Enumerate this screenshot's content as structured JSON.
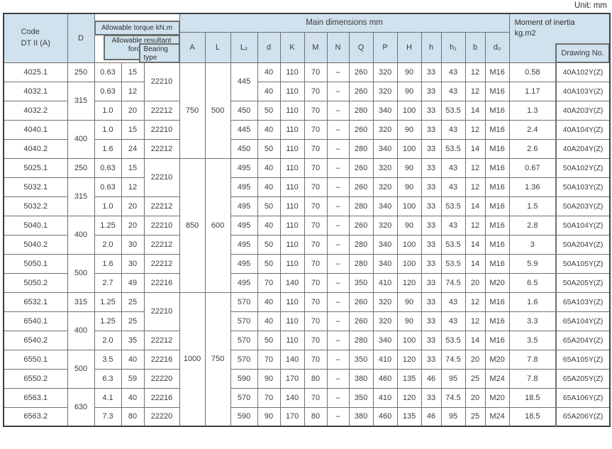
{
  "unit_label": "Unit: mm",
  "colors": {
    "header_bg": "#cfe2ed",
    "grid_line": "#707070",
    "nest_border": "#6e6e6e",
    "outer_border": "#3f3f3f",
    "text": "#3c3c3c"
  },
  "table": {
    "header": {
      "code": "Code\nDT II (A)",
      "d": "D",
      "torque": "Allowable torque kN.m",
      "resultant": "Allowable resultant\nforce kN",
      "bearing": "Bearing\ntype",
      "main_dims": "Main dimensions mm",
      "moment": "Moment of inertia\nkg.m2",
      "drawing": "Drawing No.",
      "dim_letters": [
        "A",
        "L",
        "L₂",
        "d",
        "K",
        "M",
        "N",
        "Q",
        "P",
        "H",
        "h",
        "h₁",
        "b",
        "d₀"
      ]
    },
    "rows": [
      [
        {
          "v": "4025.1"
        },
        {
          "v": "250"
        },
        {
          "v": "0.63"
        },
        {
          "v": "15"
        },
        {
          "v": "22210",
          "rs": 2
        },
        {
          "v": "750",
          "rs": 5
        },
        {
          "v": "500",
          "rs": 5
        },
        {
          "v": "445",
          "rs": 2
        },
        {
          "v": "40"
        },
        {
          "v": "110"
        },
        {
          "v": "70"
        },
        {
          "v": "–"
        },
        {
          "v": "260"
        },
        {
          "v": "320"
        },
        {
          "v": "90"
        },
        {
          "v": "33"
        },
        {
          "v": "43"
        },
        {
          "v": "12"
        },
        {
          "v": "M16"
        },
        {
          "v": "0.58"
        },
        {
          "v": "40A102Y(Z)"
        }
      ],
      [
        {
          "v": "4032.1"
        },
        {
          "v": "315",
          "rs": 2
        },
        {
          "v": "0.63"
        },
        {
          "v": "12"
        },
        {
          "v": "40"
        },
        {
          "v": "110"
        },
        {
          "v": "70"
        },
        {
          "v": "–"
        },
        {
          "v": "260"
        },
        {
          "v": "320"
        },
        {
          "v": "90"
        },
        {
          "v": "33"
        },
        {
          "v": "43"
        },
        {
          "v": "12"
        },
        {
          "v": "M16"
        },
        {
          "v": "1.17"
        },
        {
          "v": "40A103Y(Z)"
        }
      ],
      [
        {
          "v": "4032.2"
        },
        {
          "v": "1.0"
        },
        {
          "v": "20"
        },
        {
          "v": "22212"
        },
        {
          "v": "450"
        },
        {
          "v": "50"
        },
        {
          "v": "110"
        },
        {
          "v": "70"
        },
        {
          "v": "–"
        },
        {
          "v": "280"
        },
        {
          "v": "340"
        },
        {
          "v": "100"
        },
        {
          "v": "33"
        },
        {
          "v": "53.5"
        },
        {
          "v": "14"
        },
        {
          "v": "M16"
        },
        {
          "v": "1.3"
        },
        {
          "v": "40A203Y(Z)"
        }
      ],
      [
        {
          "v": "4040.1"
        },
        {
          "v": "400",
          "rs": 2
        },
        {
          "v": "1.0"
        },
        {
          "v": "15"
        },
        {
          "v": "22210"
        },
        {
          "v": "445"
        },
        {
          "v": "40"
        },
        {
          "v": "110"
        },
        {
          "v": "70"
        },
        {
          "v": "–"
        },
        {
          "v": "260"
        },
        {
          "v": "320"
        },
        {
          "v": "90"
        },
        {
          "v": "33"
        },
        {
          "v": "43"
        },
        {
          "v": "12"
        },
        {
          "v": "M16"
        },
        {
          "v": "2.4"
        },
        {
          "v": "40A104Y(Z)"
        }
      ],
      [
        {
          "v": "4040.2"
        },
        {
          "v": "1.6"
        },
        {
          "v": "24"
        },
        {
          "v": "22212"
        },
        {
          "v": "450"
        },
        {
          "v": "50"
        },
        {
          "v": "110"
        },
        {
          "v": "70"
        },
        {
          "v": "–"
        },
        {
          "v": "280"
        },
        {
          "v": "340"
        },
        {
          "v": "100"
        },
        {
          "v": "33"
        },
        {
          "v": "53.5"
        },
        {
          "v": "14"
        },
        {
          "v": "M16"
        },
        {
          "v": "2.6"
        },
        {
          "v": "40A204Y(Z)"
        }
      ],
      [
        {
          "v": "5025.1"
        },
        {
          "v": "250"
        },
        {
          "v": "0.63"
        },
        {
          "v": "15"
        },
        {
          "v": "22210",
          "rs": 2
        },
        {
          "v": "850",
          "rs": 7
        },
        {
          "v": "600",
          "rs": 7
        },
        {
          "v": "495"
        },
        {
          "v": "40"
        },
        {
          "v": "110"
        },
        {
          "v": "70"
        },
        {
          "v": "–"
        },
        {
          "v": "260"
        },
        {
          "v": "320"
        },
        {
          "v": "90"
        },
        {
          "v": "33"
        },
        {
          "v": "43"
        },
        {
          "v": "12"
        },
        {
          "v": "M16"
        },
        {
          "v": "0.67"
        },
        {
          "v": "50A102Y(Z)"
        }
      ],
      [
        {
          "v": "5032.1"
        },
        {
          "v": "315",
          "rs": 2
        },
        {
          "v": "0.63"
        },
        {
          "v": "12"
        },
        {
          "v": "495"
        },
        {
          "v": "40"
        },
        {
          "v": "110"
        },
        {
          "v": "70"
        },
        {
          "v": "–"
        },
        {
          "v": "260"
        },
        {
          "v": "320"
        },
        {
          "v": "90"
        },
        {
          "v": "33"
        },
        {
          "v": "43"
        },
        {
          "v": "12"
        },
        {
          "v": "M16"
        },
        {
          "v": "1.36"
        },
        {
          "v": "50A103Y(Z)"
        }
      ],
      [
        {
          "v": "5032.2"
        },
        {
          "v": "1.0"
        },
        {
          "v": "20"
        },
        {
          "v": "22212"
        },
        {
          "v": "495"
        },
        {
          "v": "50"
        },
        {
          "v": "110"
        },
        {
          "v": "70"
        },
        {
          "v": "–"
        },
        {
          "v": "280"
        },
        {
          "v": "340"
        },
        {
          "v": "100"
        },
        {
          "v": "33"
        },
        {
          "v": "53.5"
        },
        {
          "v": "14"
        },
        {
          "v": "M16"
        },
        {
          "v": "1.5"
        },
        {
          "v": "50A203Y(Z)"
        }
      ],
      [
        {
          "v": "5040.1"
        },
        {
          "v": "400",
          "rs": 2
        },
        {
          "v": "1.25"
        },
        {
          "v": "20"
        },
        {
          "v": "22210"
        },
        {
          "v": "495"
        },
        {
          "v": "40"
        },
        {
          "v": "110"
        },
        {
          "v": "70"
        },
        {
          "v": "–"
        },
        {
          "v": "260"
        },
        {
          "v": "320"
        },
        {
          "v": "90"
        },
        {
          "v": "33"
        },
        {
          "v": "43"
        },
        {
          "v": "12"
        },
        {
          "v": "M16"
        },
        {
          "v": "2.8"
        },
        {
          "v": "50A104Y(Z)"
        }
      ],
      [
        {
          "v": "5040.2"
        },
        {
          "v": "2.0"
        },
        {
          "v": "30"
        },
        {
          "v": "22212"
        },
        {
          "v": "495"
        },
        {
          "v": "50"
        },
        {
          "v": "110"
        },
        {
          "v": "70"
        },
        {
          "v": "–"
        },
        {
          "v": "280"
        },
        {
          "v": "340"
        },
        {
          "v": "100"
        },
        {
          "v": "33"
        },
        {
          "v": "53.5"
        },
        {
          "v": "14"
        },
        {
          "v": "M16"
        },
        {
          "v": "3"
        },
        {
          "v": "50A204Y(Z)"
        }
      ],
      [
        {
          "v": "5050.1"
        },
        {
          "v": "500",
          "rs": 2
        },
        {
          "v": "1.6"
        },
        {
          "v": "30"
        },
        {
          "v": "22212"
        },
        {
          "v": "495"
        },
        {
          "v": "50"
        },
        {
          "v": "110"
        },
        {
          "v": "70"
        },
        {
          "v": "–"
        },
        {
          "v": "280"
        },
        {
          "v": "340"
        },
        {
          "v": "100"
        },
        {
          "v": "33"
        },
        {
          "v": "53.5"
        },
        {
          "v": "14"
        },
        {
          "v": "M16"
        },
        {
          "v": "5.9"
        },
        {
          "v": "50A105Y(Z)"
        }
      ],
      [
        {
          "v": "5050.2"
        },
        {
          "v": "2.7"
        },
        {
          "v": "49"
        },
        {
          "v": "22216"
        },
        {
          "v": "495"
        },
        {
          "v": "70"
        },
        {
          "v": "140"
        },
        {
          "v": "70"
        },
        {
          "v": "–"
        },
        {
          "v": "350"
        },
        {
          "v": "410"
        },
        {
          "v": "120"
        },
        {
          "v": "33"
        },
        {
          "v": "74.5"
        },
        {
          "v": "20"
        },
        {
          "v": "M20"
        },
        {
          "v": "6.5"
        },
        {
          "v": "50A205Y(Z)"
        }
      ],
      [
        {
          "v": "6532.1"
        },
        {
          "v": "315"
        },
        {
          "v": "1.25"
        },
        {
          "v": "25"
        },
        {
          "v": "22210",
          "rs": 2
        },
        {
          "v": "1000",
          "rs": 7
        },
        {
          "v": "750",
          "rs": 7
        },
        {
          "v": "570"
        },
        {
          "v": "40"
        },
        {
          "v": "110"
        },
        {
          "v": "70"
        },
        {
          "v": "–"
        },
        {
          "v": "260"
        },
        {
          "v": "320"
        },
        {
          "v": "90"
        },
        {
          "v": "33"
        },
        {
          "v": "43"
        },
        {
          "v": "12"
        },
        {
          "v": "M16"
        },
        {
          "v": "1.6"
        },
        {
          "v": "65A103Y(Z)"
        }
      ],
      [
        {
          "v": "6540.1"
        },
        {
          "v": "400",
          "rs": 2
        },
        {
          "v": "1.25"
        },
        {
          "v": "25"
        },
        {
          "v": "570"
        },
        {
          "v": "40"
        },
        {
          "v": "110"
        },
        {
          "v": "70"
        },
        {
          "v": "–"
        },
        {
          "v": "260"
        },
        {
          "v": "320"
        },
        {
          "v": "90"
        },
        {
          "v": "33"
        },
        {
          "v": "43"
        },
        {
          "v": "12"
        },
        {
          "v": "M16"
        },
        {
          "v": "3.3"
        },
        {
          "v": "65A104Y(Z)"
        }
      ],
      [
        {
          "v": "6540.2"
        },
        {
          "v": "2.0"
        },
        {
          "v": "35"
        },
        {
          "v": "22212"
        },
        {
          "v": "570"
        },
        {
          "v": "50"
        },
        {
          "v": "110"
        },
        {
          "v": "70"
        },
        {
          "v": "–"
        },
        {
          "v": "280"
        },
        {
          "v": "340"
        },
        {
          "v": "100"
        },
        {
          "v": "33"
        },
        {
          "v": "53.5"
        },
        {
          "v": "14"
        },
        {
          "v": "M16"
        },
        {
          "v": "3.5"
        },
        {
          "v": "65A204Y(Z)"
        }
      ],
      [
        {
          "v": "6550.1"
        },
        {
          "v": "500",
          "rs": 2
        },
        {
          "v": "3.5"
        },
        {
          "v": "40"
        },
        {
          "v": "22216"
        },
        {
          "v": "570"
        },
        {
          "v": "70"
        },
        {
          "v": "140"
        },
        {
          "v": "70"
        },
        {
          "v": "–"
        },
        {
          "v": "350"
        },
        {
          "v": "410"
        },
        {
          "v": "120"
        },
        {
          "v": "33"
        },
        {
          "v": "74.5"
        },
        {
          "v": "20"
        },
        {
          "v": "M20"
        },
        {
          "v": "7.8"
        },
        {
          "v": "65A105Y(Z)"
        }
      ],
      [
        {
          "v": "6550.2"
        },
        {
          "v": "6.3"
        },
        {
          "v": "59"
        },
        {
          "v": "22220"
        },
        {
          "v": "590"
        },
        {
          "v": "90"
        },
        {
          "v": "170"
        },
        {
          "v": "80"
        },
        {
          "v": "–"
        },
        {
          "v": "380"
        },
        {
          "v": "460"
        },
        {
          "v": "135"
        },
        {
          "v": "46"
        },
        {
          "v": "95"
        },
        {
          "v": "25"
        },
        {
          "v": "M24"
        },
        {
          "v": "7.8"
        },
        {
          "v": "65A205Y(Z)"
        }
      ],
      [
        {
          "v": "6563.1"
        },
        {
          "v": "630",
          "rs": 2
        },
        {
          "v": "4.1"
        },
        {
          "v": "40"
        },
        {
          "v": "22216"
        },
        {
          "v": "570"
        },
        {
          "v": "70"
        },
        {
          "v": "140"
        },
        {
          "v": "70"
        },
        {
          "v": "–"
        },
        {
          "v": "350"
        },
        {
          "v": "410"
        },
        {
          "v": "120"
        },
        {
          "v": "33"
        },
        {
          "v": "74.5"
        },
        {
          "v": "20"
        },
        {
          "v": "M20"
        },
        {
          "v": "18.5"
        },
        {
          "v": "65A106Y(Z)"
        }
      ],
      [
        {
          "v": "6563.2"
        },
        {
          "v": "7.3"
        },
        {
          "v": "80"
        },
        {
          "v": "22220"
        },
        {
          "v": "590"
        },
        {
          "v": "90"
        },
        {
          "v": "170"
        },
        {
          "v": "80"
        },
        {
          "v": "–"
        },
        {
          "v": "380"
        },
        {
          "v": "460"
        },
        {
          "v": "135"
        },
        {
          "v": "46"
        },
        {
          "v": "95"
        },
        {
          "v": "25"
        },
        {
          "v": "M24"
        },
        {
          "v": "18.5"
        },
        {
          "v": "65A206Y(Z)"
        }
      ]
    ]
  }
}
